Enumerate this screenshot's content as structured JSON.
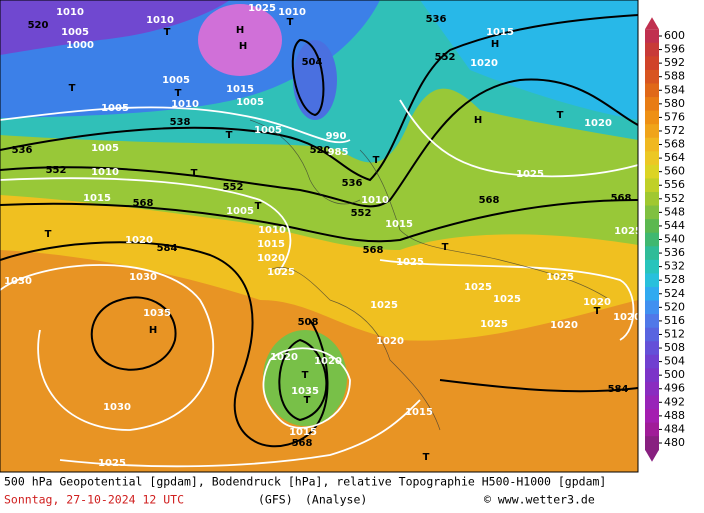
{
  "map": {
    "labels": [
      "520",
      "1010",
      "1005",
      "1000",
      "1010",
      "1025",
      "1010",
      "H",
      "H",
      "T",
      "504",
      "T",
      "536",
      "H",
      "552",
      "1015",
      "1020",
      "T",
      "T",
      "1005",
      "1010",
      "1005",
      "1015",
      "1005",
      "538",
      "T",
      "1005",
      "990",
      "H",
      "T",
      "1020",
      "536",
      "1005",
      "552",
      "1010",
      "T",
      "520",
      "985",
      "T",
      "536",
      "552",
      "1015",
      "568",
      "1005",
      "T",
      "552",
      "1010",
      "1015",
      "568",
      "1025",
      "568",
      "T",
      "1020",
      "584",
      "1010",
      "1015",
      "1020",
      "568",
      "T",
      "1025",
      "1025",
      "1030",
      "1030",
      "1035",
      "H",
      "1025",
      "1025",
      "1025",
      "1025",
      "1025",
      "1020",
      "T",
      "1020",
      "1020",
      "1020",
      "508",
      "1020",
      "1020",
      "T",
      "1035",
      "T",
      "1015",
      "568",
      "1030",
      "1015",
      "584",
      "1025",
      "T",
      "1025"
    ]
  },
  "colorbar": {
    "labels": [
      600,
      596,
      592,
      588,
      584,
      580,
      576,
      572,
      568,
      564,
      560,
      556,
      552,
      548,
      544,
      540,
      536,
      532,
      528,
      524,
      520,
      516,
      512,
      508,
      504,
      500,
      496,
      492,
      488,
      484,
      480
    ],
    "colors": [
      "#c0304f",
      "#c83a38",
      "#d0432a",
      "#d85520",
      "#e06818",
      "#e87c14",
      "#ee9014",
      "#f0a41a",
      "#f0b820",
      "#ecc824",
      "#dcd424",
      "#c0d028",
      "#a0c830",
      "#80c040",
      "#5cb850",
      "#40b870",
      "#30bc98",
      "#28c4bc",
      "#28c0dc",
      "#30aaf0",
      "#4090f0",
      "#5078e8",
      "#5864e0",
      "#6450d8",
      "#7040d0",
      "#7c34c8",
      "#8a2cc0",
      "#9824b8",
      "#a41eb0",
      "#a01c98",
      "#882080"
    ]
  },
  "caption": {
    "line1": "500 hPa Geopotential [gpdam], Bodendruck [hPa], relative Topographie H500-H1000 [gpdam]",
    "date": "Sonntag, 27-10-2024  12 UTC",
    "model": "(GFS)",
    "run": "(Analyse)",
    "credit": "© www.wetter3.de"
  }
}
